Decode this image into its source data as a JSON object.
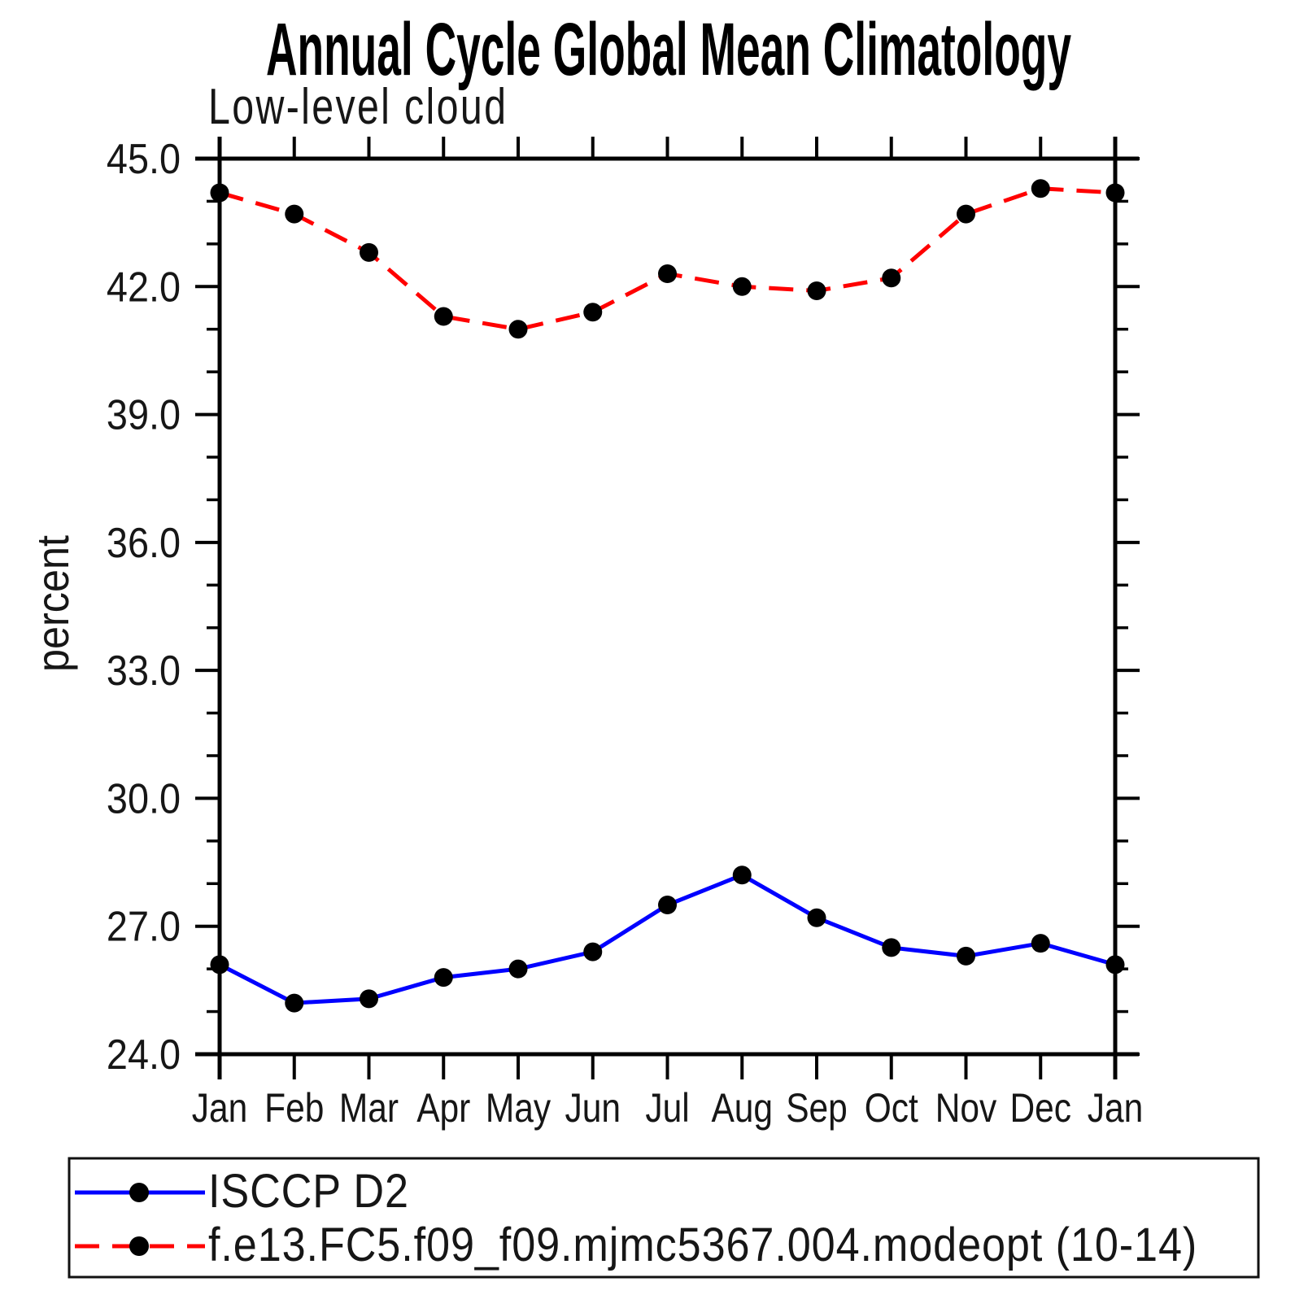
{
  "chart_data": {
    "type": "line",
    "title": "Annual Cycle Global Mean Climatology",
    "subtitle": "Low-level cloud",
    "xlabel": "",
    "ylabel": "percent",
    "categories": [
      "Jan",
      "Feb",
      "Mar",
      "Apr",
      "May",
      "Jun",
      "Jul",
      "Aug",
      "Sep",
      "Oct",
      "Nov",
      "Dec",
      "Jan"
    ],
    "ylim": [
      24.0,
      45.0
    ],
    "ytick_major_interval": 3.0,
    "ytick_minor_interval": 1.0,
    "ytick_labels": [
      "24.0",
      "27.0",
      "30.0",
      "33.0",
      "36.0",
      "39.0",
      "42.0",
      "45.0"
    ],
    "grid": false,
    "legend_position": "bottom-left-boxed",
    "series": [
      {
        "name": "ISCCP D2",
        "color": "#0000ff",
        "style": "solid",
        "marker": "black-filled-circle",
        "values": [
          26.1,
          25.2,
          25.3,
          25.8,
          26.0,
          26.4,
          27.5,
          28.2,
          27.2,
          26.5,
          26.3,
          26.6,
          26.1
        ]
      },
      {
        "name": "f.e13.FC5.f09_f09.mjmc5367.004.modeopt (10-14)",
        "color": "#ff0000",
        "style": "dashed",
        "marker": "black-filled-circle",
        "values": [
          44.2,
          43.7,
          42.8,
          41.3,
          41.0,
          41.4,
          42.3,
          42.0,
          41.9,
          42.2,
          43.7,
          44.3,
          44.2
        ]
      }
    ]
  },
  "colors": {
    "axis": "#000000",
    "marker": "#000000",
    "background": "#ffffff",
    "series_blue": "#0000ff",
    "series_red": "#ff0000"
  }
}
